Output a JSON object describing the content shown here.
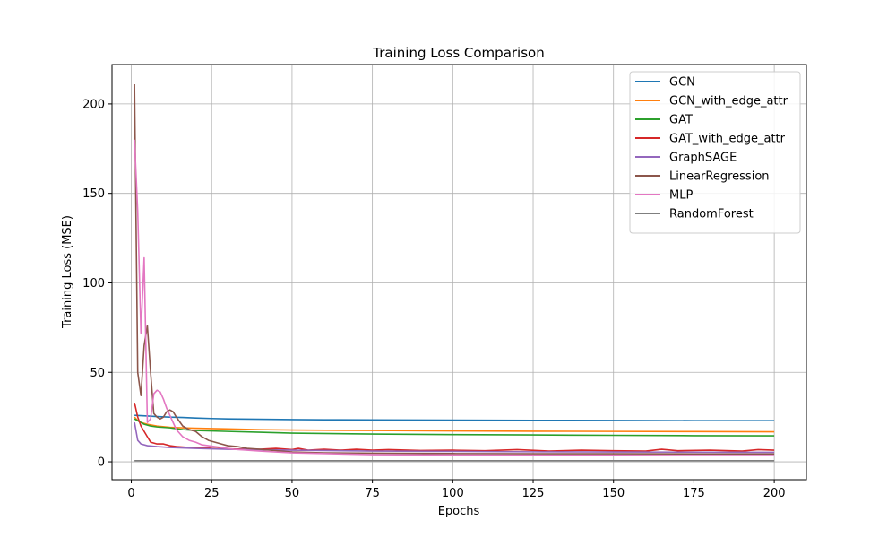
{
  "chart_data": {
    "type": "line",
    "title": "Training Loss Comparison",
    "xlabel": "Epochs",
    "ylabel": "Training Loss (MSE)",
    "xlim": [
      -6,
      210
    ],
    "ylim": [
      -10,
      222
    ],
    "x_ticks": [
      0,
      25,
      50,
      75,
      100,
      125,
      150,
      175,
      200
    ],
    "y_ticks": [
      0,
      50,
      100,
      150,
      200
    ],
    "grid": true,
    "legend_position": "top-right",
    "series": [
      {
        "name": "GCN",
        "color": "#1f77b4",
        "points": [
          [
            1,
            26
          ],
          [
            3,
            25.8
          ],
          [
            5,
            25.6
          ],
          [
            8,
            25.3
          ],
          [
            12,
            25
          ],
          [
            16,
            24.8
          ],
          [
            20,
            24.5
          ],
          [
            25,
            24.2
          ],
          [
            30,
            24
          ],
          [
            40,
            23.8
          ],
          [
            50,
            23.6
          ],
          [
            60,
            23.5
          ],
          [
            75,
            23.4
          ],
          [
            100,
            23.3
          ],
          [
            125,
            23.2
          ],
          [
            150,
            23.1
          ],
          [
            175,
            23
          ],
          [
            200,
            23
          ]
        ]
      },
      {
        "name": "GCN_with_edge_attr",
        "color": "#ff7f0e",
        "points": [
          [
            1,
            25
          ],
          [
            2,
            23
          ],
          [
            3,
            22
          ],
          [
            5,
            21
          ],
          [
            8,
            20
          ],
          [
            12,
            19.3
          ],
          [
            16,
            19
          ],
          [
            20,
            18.8
          ],
          [
            30,
            18.4
          ],
          [
            40,
            18
          ],
          [
            50,
            17.8
          ],
          [
            75,
            17.5
          ],
          [
            100,
            17.3
          ],
          [
            125,
            17.1
          ],
          [
            150,
            17
          ],
          [
            175,
            16.9
          ],
          [
            200,
            16.8
          ]
        ]
      },
      {
        "name": "GAT",
        "color": "#2ca02c",
        "points": [
          [
            1,
            24
          ],
          [
            2,
            23
          ],
          [
            4,
            21
          ],
          [
            6,
            20
          ],
          [
            8,
            19.5
          ],
          [
            12,
            19
          ],
          [
            16,
            18
          ],
          [
            20,
            17.5
          ],
          [
            30,
            17
          ],
          [
            40,
            16.5
          ],
          [
            50,
            16
          ],
          [
            75,
            15.5
          ],
          [
            100,
            15.2
          ],
          [
            125,
            15
          ],
          [
            150,
            14.8
          ],
          [
            175,
            14.6
          ],
          [
            200,
            14.5
          ]
        ]
      },
      {
        "name": "GAT_with_edge_attr",
        "color": "#d62728",
        "points": [
          [
            1,
            33
          ],
          [
            2,
            25
          ],
          [
            3,
            20
          ],
          [
            4,
            17
          ],
          [
            5,
            14
          ],
          [
            6,
            11
          ],
          [
            8,
            10
          ],
          [
            10,
            10
          ],
          [
            12,
            9
          ],
          [
            14,
            8.5
          ],
          [
            18,
            8
          ],
          [
            22,
            8
          ],
          [
            25,
            7.5
          ],
          [
            30,
            7.2
          ],
          [
            40,
            7
          ],
          [
            45,
            7.5
          ],
          [
            50,
            6.8
          ],
          [
            52,
            7.5
          ],
          [
            55,
            6.5
          ],
          [
            60,
            7
          ],
          [
            65,
            6.5
          ],
          [
            70,
            7
          ],
          [
            75,
            6.5
          ],
          [
            80,
            6.8
          ],
          [
            90,
            6.3
          ],
          [
            100,
            6.5
          ],
          [
            110,
            6.2
          ],
          [
            120,
            6.8
          ],
          [
            130,
            6
          ],
          [
            140,
            6.5
          ],
          [
            150,
            6.2
          ],
          [
            160,
            6
          ],
          [
            165,
            7
          ],
          [
            170,
            6.2
          ],
          [
            180,
            6.5
          ],
          [
            190,
            6
          ],
          [
            195,
            6.8
          ],
          [
            200,
            6.5
          ]
        ]
      },
      {
        "name": "GraphSAGE",
        "color": "#9467bd",
        "points": [
          [
            1,
            22
          ],
          [
            2,
            12
          ],
          [
            3,
            10
          ],
          [
            5,
            9
          ],
          [
            8,
            8.5
          ],
          [
            12,
            8
          ],
          [
            20,
            7.5
          ],
          [
            30,
            7
          ],
          [
            50,
            6.5
          ],
          [
            75,
            6
          ],
          [
            100,
            5.8
          ],
          [
            125,
            5.6
          ],
          [
            150,
            5.5
          ],
          [
            175,
            5.4
          ],
          [
            200,
            5.3
          ]
        ]
      },
      {
        "name": "LinearRegression",
        "color": "#8c564b",
        "points": [
          [
            1,
            211
          ],
          [
            2,
            50
          ],
          [
            3,
            37
          ],
          [
            4,
            65
          ],
          [
            5,
            76
          ],
          [
            6,
            50
          ],
          [
            7,
            27
          ],
          [
            8,
            25
          ],
          [
            9,
            24
          ],
          [
            10,
            25
          ],
          [
            11,
            28
          ],
          [
            12,
            29
          ],
          [
            13,
            28
          ],
          [
            14,
            25
          ],
          [
            16,
            20
          ],
          [
            18,
            18
          ],
          [
            20,
            17
          ],
          [
            22,
            14
          ],
          [
            24,
            12
          ],
          [
            26,
            11
          ],
          [
            28,
            10
          ],
          [
            30,
            9
          ],
          [
            33,
            8.5
          ],
          [
            36,
            7.5
          ],
          [
            40,
            7
          ],
          [
            50,
            5.5
          ],
          [
            60,
            5
          ],
          [
            75,
            4.8
          ],
          [
            100,
            4.6
          ],
          [
            125,
            4.5
          ],
          [
            150,
            4.5
          ],
          [
            175,
            4.4
          ],
          [
            200,
            4.4
          ]
        ]
      },
      {
        "name": "MLP",
        "color": "#e377c2",
        "points": [
          [
            1,
            180
          ],
          [
            2,
            140
          ],
          [
            3,
            72
          ],
          [
            4,
            114
          ],
          [
            5,
            22
          ],
          [
            6,
            24
          ],
          [
            7,
            38
          ],
          [
            8,
            40
          ],
          [
            9,
            39
          ],
          [
            10,
            35
          ],
          [
            11,
            30
          ],
          [
            12,
            26
          ],
          [
            13,
            22
          ],
          [
            14,
            18
          ],
          [
            16,
            14
          ],
          [
            18,
            12
          ],
          [
            20,
            11
          ],
          [
            22,
            9.5
          ],
          [
            24,
            9
          ],
          [
            28,
            8
          ],
          [
            32,
            7
          ],
          [
            40,
            6
          ],
          [
            50,
            5
          ],
          [
            75,
            4
          ],
          [
            100,
            3.8
          ],
          [
            125,
            3.7
          ],
          [
            150,
            3.6
          ],
          [
            175,
            3.5
          ],
          [
            200,
            3.5
          ]
        ]
      },
      {
        "name": "RandomForest",
        "color": "#7f7f7f",
        "points": [
          [
            1,
            0.6
          ],
          [
            50,
            0.6
          ],
          [
            100,
            0.6
          ],
          [
            150,
            0.6
          ],
          [
            200,
            0.6
          ]
        ]
      }
    ]
  }
}
